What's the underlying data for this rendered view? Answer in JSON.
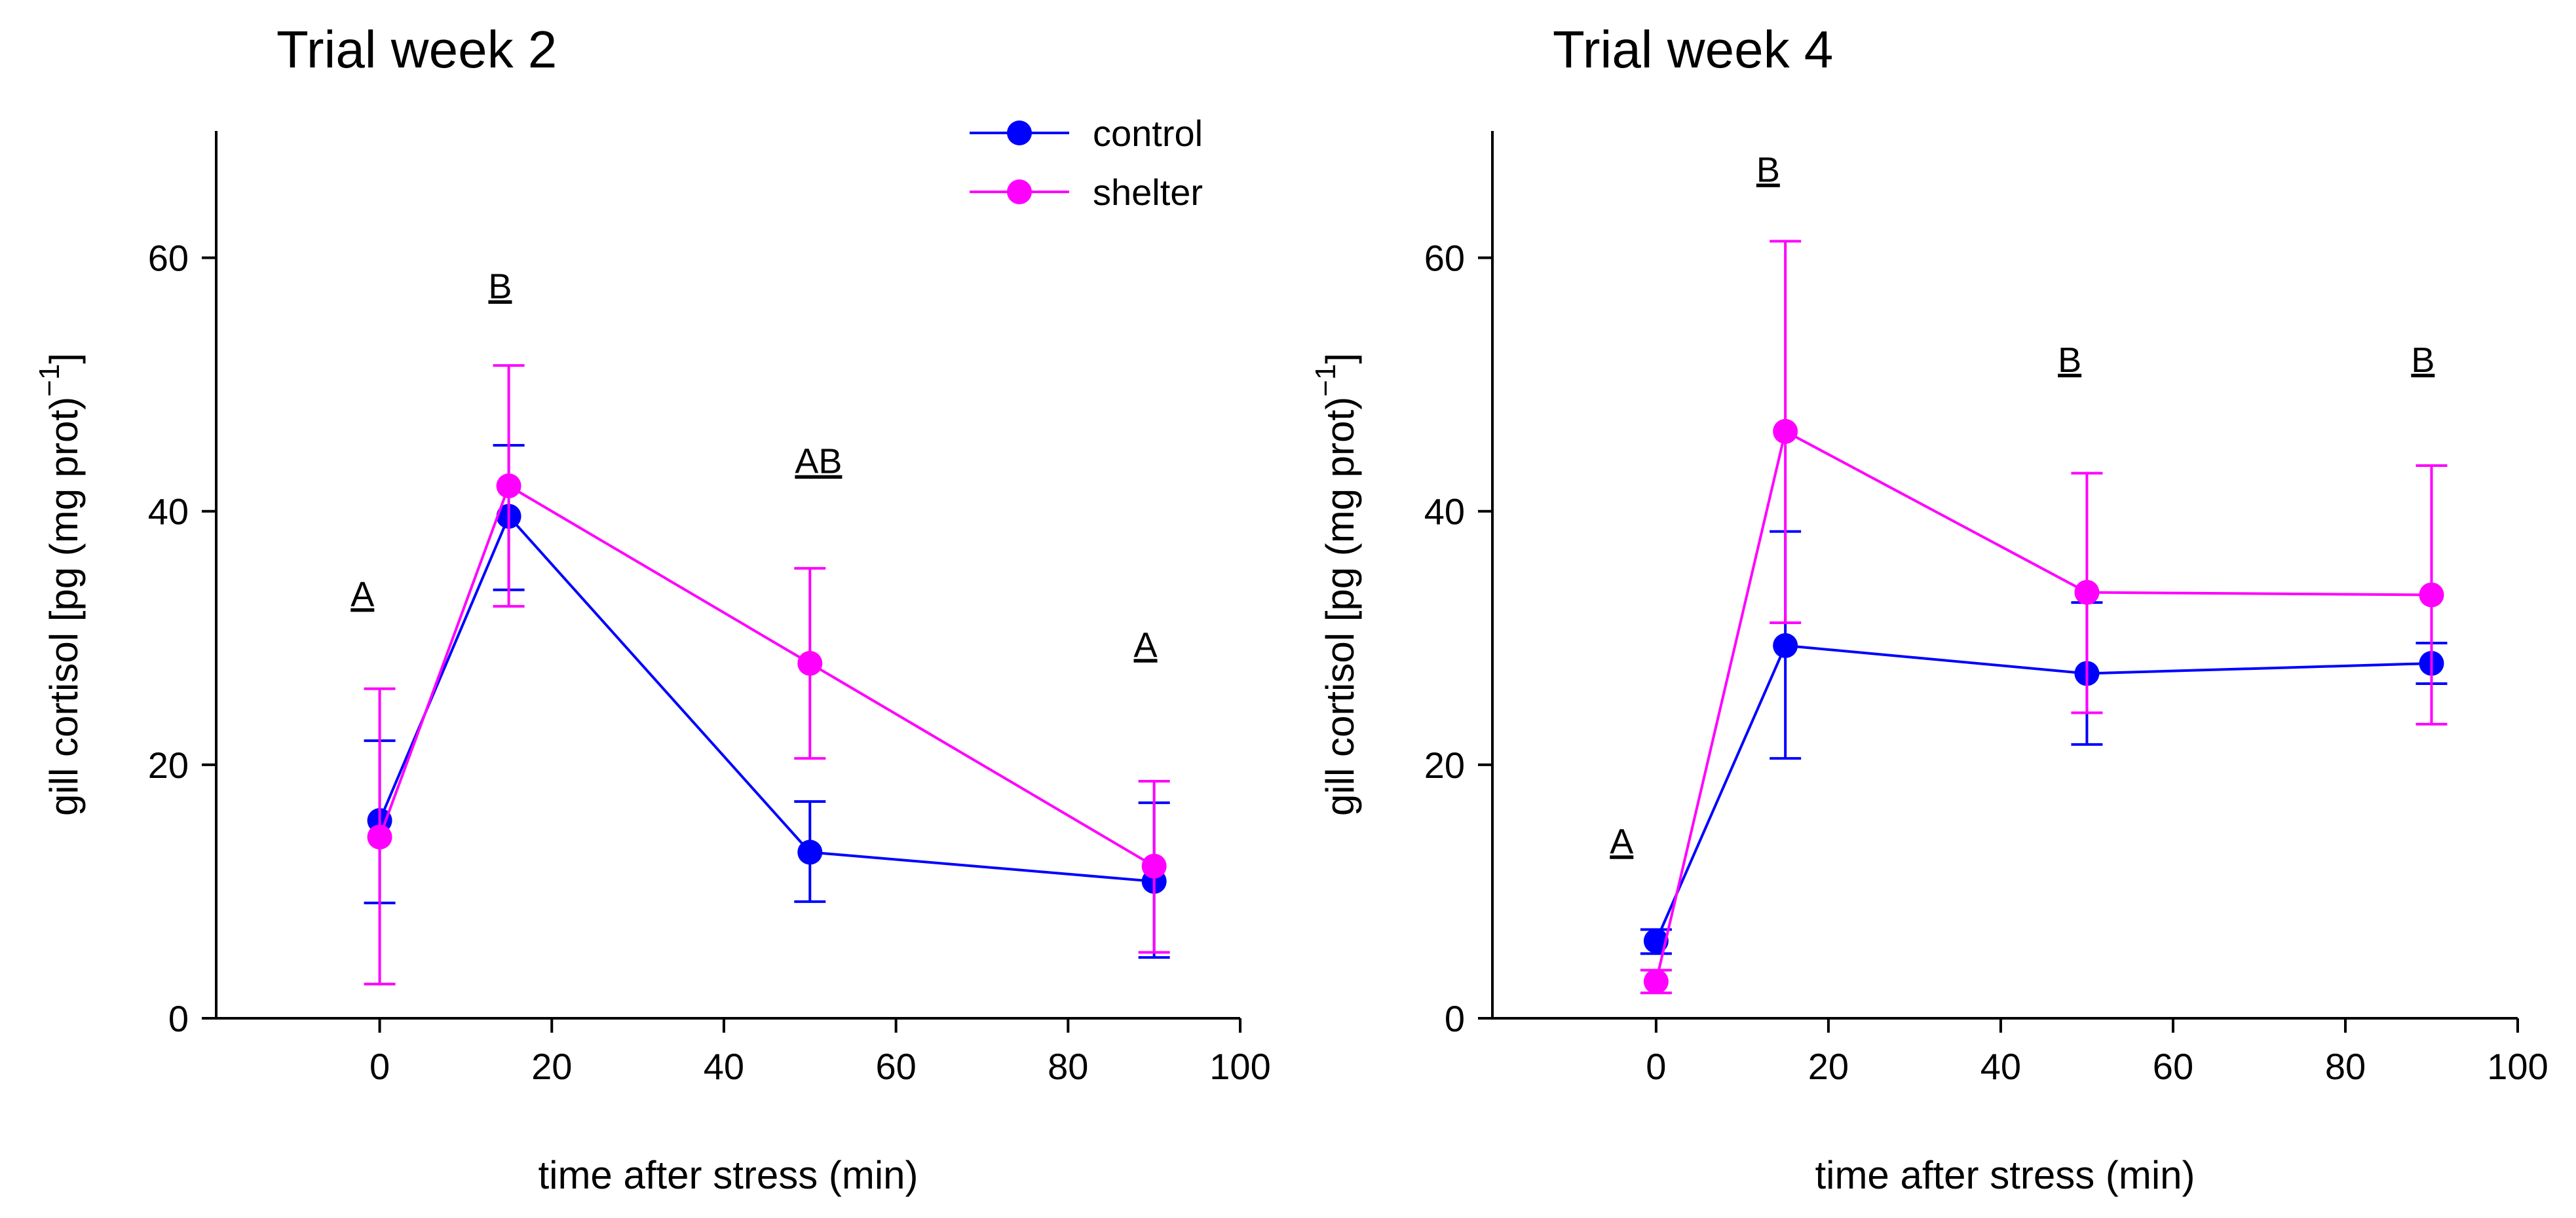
{
  "chart_data": [
    {
      "type": "line",
      "title": "Trial week 2",
      "xlabel": "time after stress (min)",
      "ylabel": "gill cortisol [pg (mg prot)",
      "ylabel_superscript": "−1",
      "ylabel_close": "]",
      "xlim": [
        -19,
        100
      ],
      "ylim": [
        0,
        70
      ],
      "xticks": [
        0,
        20,
        40,
        60,
        80,
        100
      ],
      "yticks": [
        0,
        20,
        40,
        60
      ],
      "x": [
        0,
        15,
        50,
        90
      ],
      "series": [
        {
          "name": "control",
          "color": "#0000ff",
          "values": [
            15.6,
            39.6,
            13.1,
            10.8
          ],
          "err_low": [
            9.1,
            33.8,
            9.2,
            4.8
          ],
          "err_high": [
            21.9,
            45.2,
            17.1,
            17.0
          ]
        },
        {
          "name": "shelter",
          "color": "#ff00ff",
          "values": [
            14.3,
            42.0,
            28.0,
            12.0
          ],
          "err_low": [
            2.7,
            32.5,
            20.5,
            5.2
          ],
          "err_high": [
            26.0,
            51.5,
            35.5,
            18.7
          ]
        }
      ],
      "significance_letters": [
        {
          "x": -2,
          "y": 32.5,
          "text": "A"
        },
        {
          "x": 14,
          "y": 56.8,
          "text": "B"
        },
        {
          "x": 51,
          "y": 43.0,
          "text": "AB"
        },
        {
          "x": 89,
          "y": 28.5,
          "text": "A"
        }
      ],
      "legend": {
        "position": "top-right",
        "entries": [
          "control",
          "shelter"
        ]
      }
    },
    {
      "type": "line",
      "title": "Trial week 4",
      "xlabel": "time after stress (min)",
      "ylabel": "gill cortisol [pg (mg prot)",
      "ylabel_superscript": "−1",
      "ylabel_close": "]",
      "xlim": [
        -19,
        100
      ],
      "ylim": [
        0,
        70
      ],
      "xticks": [
        0,
        20,
        40,
        60,
        80,
        100
      ],
      "yticks": [
        0,
        20,
        40,
        60
      ],
      "x": [
        0,
        15,
        50,
        90
      ],
      "series": [
        {
          "name": "control",
          "color": "#0000ff",
          "values": [
            6.1,
            29.4,
            27.2,
            28.0
          ],
          "err_low": [
            5.1,
            20.5,
            21.6,
            26.4
          ],
          "err_high": [
            7.0,
            38.4,
            32.8,
            29.6
          ]
        },
        {
          "name": "shelter",
          "color": "#ff00ff",
          "values": [
            2.9,
            46.3,
            33.6,
            33.4
          ],
          "err_low": [
            2.0,
            31.2,
            24.1,
            23.2
          ],
          "err_high": [
            3.8,
            61.3,
            43.0,
            43.6
          ]
        }
      ],
      "significance_letters": [
        {
          "x": -4,
          "y": 13.0,
          "text": "A"
        },
        {
          "x": 13,
          "y": 66.0,
          "text": "B"
        },
        {
          "x": 48,
          "y": 51.0,
          "text": "B"
        },
        {
          "x": 89,
          "y": 51.0,
          "text": "B"
        }
      ]
    }
  ]
}
